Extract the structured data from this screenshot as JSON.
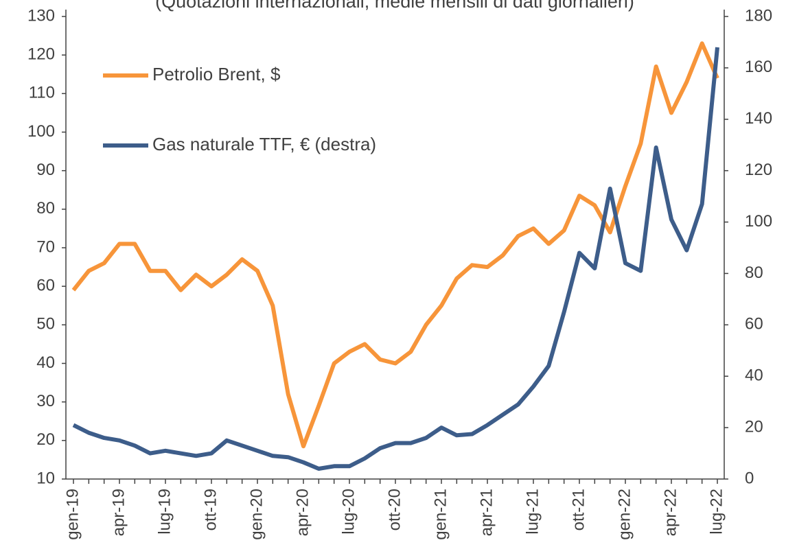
{
  "chart_data": {
    "type": "line",
    "subtitle": "(Quotazioni internazionali, medie mensili di dati giornalieri)",
    "categories": [
      "gen-19",
      null,
      null,
      "apr-19",
      null,
      null,
      "lug-19",
      null,
      null,
      "ott-19",
      null,
      null,
      "gen-20",
      null,
      null,
      "apr-20",
      null,
      null,
      "lug-20",
      null,
      null,
      "ott-20",
      null,
      null,
      "gen-21",
      null,
      null,
      "apr-21",
      null,
      null,
      "lug-21",
      null,
      null,
      "ott-21",
      null,
      null,
      "gen-22",
      null,
      null,
      "apr-22",
      null,
      null,
      "lug-22"
    ],
    "series": [
      {
        "name": "Petrolio Brent, $",
        "color": "#f7953a",
        "axis": "y",
        "values": [
          59,
          64,
          66,
          71,
          71,
          64,
          64,
          59,
          63,
          60,
          63,
          67,
          64,
          55,
          32,
          18.5,
          29,
          40,
          43,
          45,
          41,
          40,
          43,
          50,
          55,
          62,
          65.5,
          65,
          68,
          73,
          75,
          71,
          74.5,
          83.5,
          81,
          74,
          86,
          97,
          117,
          105,
          113,
          123,
          114
        ]
      },
      {
        "name": "Gas naturale TTF, € (destra)",
        "color": "#3d5d8a",
        "axis": "y2",
        "values": [
          21,
          18,
          16,
          15,
          13,
          10,
          11,
          10,
          9,
          10,
          15,
          13,
          11,
          9,
          8.5,
          6.5,
          4,
          5,
          5,
          8,
          12,
          14,
          14,
          16,
          20,
          17,
          17.5,
          21,
          25,
          29,
          36,
          44,
          65,
          88,
          82,
          113,
          84,
          81,
          129,
          101,
          89,
          107,
          168
        ]
      }
    ],
    "ylim": [
      10,
      130
    ],
    "yticks": [
      10,
      20,
      30,
      40,
      50,
      60,
      70,
      80,
      90,
      100,
      110,
      120,
      130
    ],
    "y2lim": [
      0,
      180
    ],
    "y2ticks": [
      0,
      20,
      40,
      60,
      80,
      100,
      120,
      140,
      160,
      180
    ],
    "legend": "upper left"
  }
}
